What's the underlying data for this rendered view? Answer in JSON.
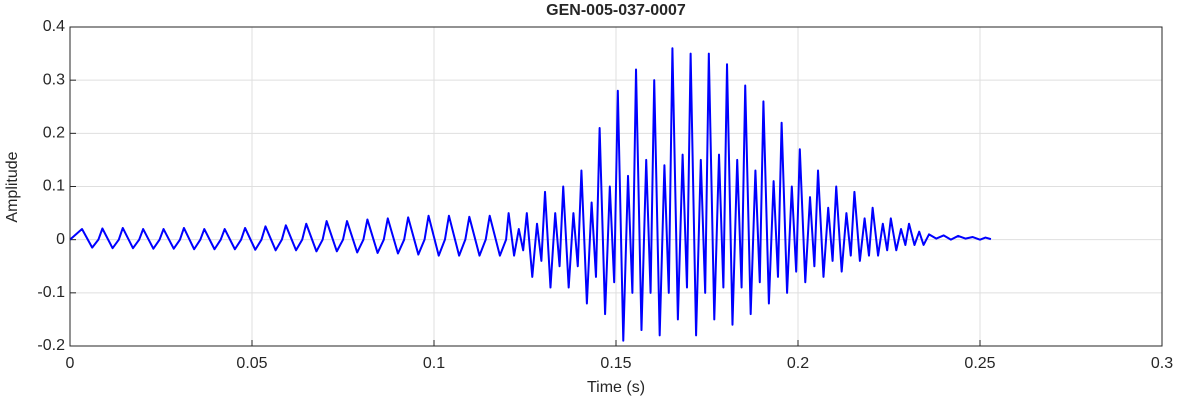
{
  "chart_data": {
    "type": "line",
    "title": "GEN-005-037-0007",
    "xlabel": "Time (s)",
    "ylabel": "Amplitude",
    "color": "#0000ff",
    "grid": true,
    "xlim": [
      0,
      0.3
    ],
    "xticks": [
      0,
      0.05,
      0.1,
      0.15,
      0.2,
      0.25,
      0.3
    ],
    "ylim": [
      -0.2,
      0.4
    ],
    "yticks": [
      -0.2,
      -0.1,
      0,
      0.1,
      0.2,
      0.3,
      0.4
    ],
    "x": [
      0,
      0.0033,
      0.0061,
      0.0078,
      0.0089,
      0.0117,
      0.0134,
      0.0145,
      0.0173,
      0.019,
      0.0201,
      0.0229,
      0.0246,
      0.0257,
      0.0285,
      0.0302,
      0.0313,
      0.0341,
      0.0358,
      0.0369,
      0.0397,
      0.0414,
      0.0425,
      0.0453,
      0.047,
      0.0481,
      0.0509,
      0.0526,
      0.0537,
      0.0565,
      0.0582,
      0.0593,
      0.0621,
      0.0638,
      0.0649,
      0.0677,
      0.0694,
      0.0705,
      0.0733,
      0.075,
      0.0761,
      0.0789,
      0.0806,
      0.0817,
      0.0845,
      0.0862,
      0.0873,
      0.0901,
      0.0918,
      0.0929,
      0.0957,
      0.0974,
      0.0985,
      0.1013,
      0.103,
      0.1041,
      0.1069,
      0.1086,
      0.1097,
      0.1125,
      0.1142,
      0.1153,
      0.1181,
      0.1198,
      0.1205,
      0.122,
      0.1233,
      0.1245,
      0.1255,
      0.127,
      0.1283,
      0.1295,
      0.1305,
      0.132,
      0.1333,
      0.1345,
      0.1355,
      0.137,
      0.1383,
      0.1395,
      0.1405,
      0.142,
      0.1433,
      0.1445,
      0.1455,
      0.147,
      0.1483,
      0.1495,
      0.1505,
      0.152,
      0.1533,
      0.1545,
      0.1555,
      0.157,
      0.1583,
      0.1595,
      0.1605,
      0.162,
      0.1633,
      0.1645,
      0.1655,
      0.167,
      0.1683,
      0.1695,
      0.1705,
      0.172,
      0.1733,
      0.1745,
      0.1755,
      0.177,
      0.1783,
      0.1795,
      0.1805,
      0.182,
      0.1833,
      0.1845,
      0.1855,
      0.187,
      0.1883,
      0.1895,
      0.1905,
      0.192,
      0.1933,
      0.1945,
      0.1955,
      0.197,
      0.1983,
      0.1995,
      0.2005,
      0.202,
      0.2033,
      0.2045,
      0.2055,
      0.207,
      0.2083,
      0.2095,
      0.2105,
      0.212,
      0.2133,
      0.2145,
      0.2155,
      0.217,
      0.2183,
      0.2195,
      0.2205,
      0.222,
      0.2233,
      0.2245,
      0.2255,
      0.227,
      0.2283,
      0.2295,
      0.2305,
      0.232,
      0.2333,
      0.2345,
      0.236,
      0.238,
      0.24,
      0.242,
      0.244,
      0.246,
      0.248,
      0.25,
      0.2515,
      0.253
    ],
    "values": [
      0,
      0.02,
      -0.015,
      0,
      0.021,
      -0.016,
      0,
      0.022,
      -0.016,
      0,
      0.02,
      -0.017,
      0,
      0.02,
      -0.017,
      0,
      0.022,
      -0.018,
      0,
      0.02,
      -0.018,
      0,
      0.02,
      -0.018,
      0,
      0.022,
      -0.019,
      0,
      0.025,
      -0.02,
      0,
      0.027,
      -0.02,
      0,
      0.03,
      -0.022,
      0,
      0.035,
      -0.022,
      0,
      0.035,
      -0.024,
      0,
      0.038,
      -0.025,
      0,
      0.04,
      -0.026,
      0,
      0.042,
      -0.028,
      0,
      0.045,
      -0.03,
      0,
      0.045,
      -0.03,
      0,
      0.043,
      -0.03,
      0,
      0.045,
      -0.03,
      0,
      0.05,
      -0.03,
      0.02,
      -0.02,
      0.05,
      -0.07,
      0.03,
      -0.04,
      0.09,
      -0.09,
      0.05,
      -0.05,
      0.1,
      -0.09,
      0.05,
      -0.05,
      0.13,
      -0.12,
      0.07,
      -0.07,
      0.21,
      -0.14,
      0.1,
      -0.08,
      0.28,
      -0.19,
      0.12,
      -0.1,
      0.32,
      -0.17,
      0.15,
      -0.1,
      0.3,
      -0.18,
      0.14,
      -0.1,
      0.36,
      -0.15,
      0.16,
      -0.09,
      0.35,
      -0.18,
      0.15,
      -0.1,
      0.35,
      -0.15,
      0.16,
      -0.09,
      0.33,
      -0.16,
      0.15,
      -0.09,
      0.29,
      -0.14,
      0.13,
      -0.08,
      0.26,
      -0.12,
      0.11,
      -0.07,
      0.22,
      -0.1,
      0.1,
      -0.06,
      0.17,
      -0.08,
      0.08,
      -0.05,
      0.13,
      -0.07,
      0.06,
      -0.04,
      0.1,
      -0.06,
      0.05,
      -0.03,
      0.09,
      -0.04,
      0.04,
      -0.03,
      0.06,
      -0.03,
      0.03,
      -0.02,
      0.04,
      -0.02,
      0.02,
      -0.01,
      0.03,
      -0.01,
      0.015,
      -0.01,
      0.01,
      0.002,
      0.008,
      0,
      0.007,
      0.002,
      0.005,
      0,
      0.004,
      0.001
    ]
  }
}
